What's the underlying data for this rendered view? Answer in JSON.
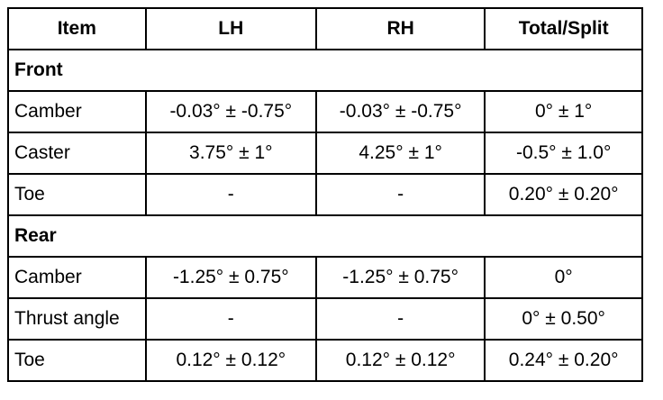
{
  "table": {
    "header": [
      "Item",
      "LH",
      "RH",
      "Total/Split"
    ],
    "sections": [
      {
        "title": "Front",
        "rows": [
          [
            "Camber",
            "-0.03° ± -0.75°",
            "-0.03° ± -0.75°",
            "0° ± 1°"
          ],
          [
            "Caster",
            "3.75° ± 1°",
            "4.25° ± 1°",
            "-0.5° ± 1.0°"
          ],
          [
            "Toe",
            "-",
            "-",
            "0.20° ± 0.20°"
          ]
        ]
      },
      {
        "title": "Rear",
        "rows": [
          [
            "Camber",
            "-1.25° ± 0.75°",
            "-1.25° ± 0.75°",
            "0°"
          ],
          [
            "Thrust angle",
            "-",
            "-",
            "0° ± 0.50°"
          ],
          [
            "Toe",
            "0.12° ± 0.12°",
            "0.12° ± 0.12°",
            "0.24° ± 0.20°"
          ]
        ]
      }
    ]
  }
}
